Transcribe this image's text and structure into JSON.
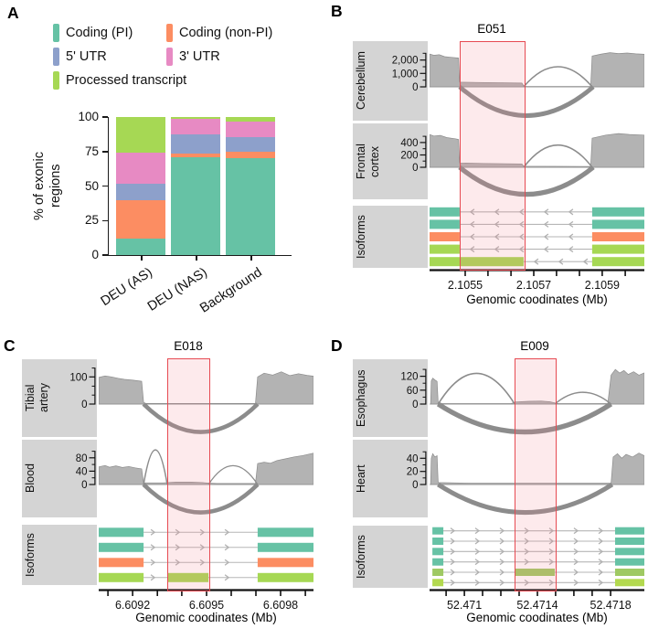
{
  "chart_data": [
    {
      "panel": "A",
      "type": "bar",
      "stacked": true,
      "categories": [
        "DEU (AS)",
        "DEU (NAS)",
        "Background"
      ],
      "series": [
        {
          "name": "Coding (PI)",
          "color": "#66c2a5",
          "values": [
            12,
            71,
            70
          ]
        },
        {
          "name": "Coding (non-PI)",
          "color": "#fc8d62",
          "values": [
            28,
            2.5,
            5
          ]
        },
        {
          "name": "5' UTR",
          "color": "#8da0cb",
          "values": [
            12,
            14,
            10.5
          ]
        },
        {
          "name": "3' UTR",
          "color": "#e78ac3",
          "values": [
            22,
            11.5,
            11.5
          ]
        },
        {
          "name": "Processed transcript",
          "color": "#a6d854",
          "values": [
            26,
            1,
            3
          ]
        }
      ],
      "ylabel": "% of exonic\nregions",
      "yticks": [
        0,
        25,
        50,
        75,
        100
      ],
      "ylim": [
        0,
        100
      ],
      "legend_position": "top"
    },
    {
      "panel": "B",
      "type": "sashimi",
      "exon_label": "E051",
      "arrow_dir": "left",
      "highlight": [
        0.14,
        0.438
      ],
      "xaxis": {
        "title": "Genomic coodinates (Mb)",
        "tick_positions": [
          0.166,
          0.272,
          0.379,
          0.485,
          0.591,
          0.698,
          0.804,
          0.911
        ],
        "labels": [
          {
            "text": "2.1055",
            "pos": 0.166
          },
          {
            "text": "2.1057",
            "pos": 0.485
          },
          {
            "text": "2.1059",
            "pos": 0.804
          }
        ]
      },
      "tracks": [
        {
          "name": "Cerebellum",
          "ymax": 3000,
          "yticks": [
            {
              "value": 2000,
              "label": "2,000"
            },
            {
              "value": 1000,
              "label": "1,000"
            },
            {
              "value": 0,
              "label": "0"
            }
          ],
          "minor_ticks": [
            2500,
            1500,
            500
          ],
          "coverage": [
            [
              0,
              2450
            ],
            [
              0.02,
              2350
            ],
            [
              0.045,
              2400
            ],
            [
              0.07,
              2250
            ],
            [
              0.1,
              2200
            ],
            [
              0.135,
              2150
            ],
            [
              0.14,
              350
            ],
            [
              0.22,
              330
            ],
            [
              0.3,
              310
            ],
            [
              0.43,
              280
            ],
            [
              0.438,
              80
            ],
            [
              0.45,
              30
            ],
            [
              0.75,
              30
            ],
            [
              0.757,
              2300
            ],
            [
              0.8,
              2450
            ],
            [
              0.84,
              2550
            ],
            [
              0.88,
              2480
            ],
            [
              0.92,
              2520
            ],
            [
              0.96,
              2460
            ],
            [
              1,
              2430
            ]
          ],
          "arcs_up": [
            [
              0.438,
              0.757,
              0.5,
              1.6
            ]
          ],
          "arcs_down": [
            [
              0.14,
              0.762,
              4.8
            ]
          ]
        },
        {
          "name": "Frontal\ncortex",
          "ymax": 620,
          "yticks": [
            {
              "value": 400,
              "label": "400"
            },
            {
              "value": 200,
              "label": "200"
            },
            {
              "value": 0,
              "label": "0"
            }
          ],
          "minor_ticks": [
            500,
            300,
            100
          ],
          "coverage": [
            [
              0,
              530
            ],
            [
              0.02,
              505
            ],
            [
              0.05,
              515
            ],
            [
              0.08,
              480
            ],
            [
              0.12,
              460
            ],
            [
              0.135,
              450
            ],
            [
              0.14,
              70
            ],
            [
              0.25,
              62
            ],
            [
              0.43,
              55
            ],
            [
              0.438,
              18
            ],
            [
              0.75,
              14
            ],
            [
              0.757,
              470
            ],
            [
              0.82,
              520
            ],
            [
              0.88,
              545
            ],
            [
              0.93,
              530
            ],
            [
              1,
              520
            ]
          ],
          "arcs_up": [
            [
              0.438,
              0.757,
              0.58,
              1.6
            ]
          ],
          "arcs_down": [
            [
              0.14,
              0.762,
              5.2
            ]
          ]
        }
      ],
      "isoforms": {
        "name": "Isoforms",
        "rows": [
          {
            "color": "#66c2a5",
            "blocks": [
              [
                0,
                0.14
              ],
              [
                0.757,
                1
              ]
            ]
          },
          {
            "color": "#66c2a5",
            "blocks": [
              [
                0,
                0.14
              ],
              [
                0.757,
                1
              ]
            ]
          },
          {
            "color": "#fc8d62",
            "blocks": [
              [
                0,
                0.14
              ],
              [
                0.757,
                1
              ]
            ]
          },
          {
            "color": "#a6d854",
            "blocks": [
              [
                0,
                0.14
              ],
              [
                0.757,
                1
              ]
            ]
          },
          {
            "color": "#a6d854",
            "blocks": [
              [
                0,
                0.438
              ],
              [
                0.757,
                1
              ]
            ]
          }
        ]
      }
    },
    {
      "panel": "C",
      "type": "sashimi",
      "exon_label": "E018",
      "arrow_dir": "right",
      "highlight": [
        0.319,
        0.511
      ],
      "xaxis": {
        "title": "Genomic coodinates (Mb)",
        "tick_positions": [
          0.043,
          0.158,
          0.273,
          0.387,
          0.502,
          0.617,
          0.732,
          0.847,
          0.962
        ],
        "labels": [
          {
            "text": "6.6092",
            "pos": 0.158
          },
          {
            "text": "6.6095",
            "pos": 0.502
          },
          {
            "text": "6.6098",
            "pos": 0.847
          }
        ]
      },
      "tracks": [
        {
          "name": "Tibial\nartery",
          "ymax": 145,
          "yticks": [
            {
              "value": 100,
              "label": "100"
            },
            {
              "value": 0,
              "label": "0"
            }
          ],
          "minor_ticks": [
            133,
            66,
            33
          ],
          "coverage": [
            [
              0,
              98
            ],
            [
              0.03,
              104
            ],
            [
              0.06,
              100
            ],
            [
              0.09,
              95
            ],
            [
              0.12,
              91
            ],
            [
              0.16,
              88
            ],
            [
              0.2,
              84
            ],
            [
              0.209,
              6
            ],
            [
              0.22,
              2
            ],
            [
              0.73,
              2
            ],
            [
              0.74,
              100
            ],
            [
              0.77,
              114
            ],
            [
              0.81,
              107
            ],
            [
              0.85,
              119
            ],
            [
              0.89,
              105
            ],
            [
              0.93,
              112
            ],
            [
              0.97,
              106
            ],
            [
              1,
              103
            ]
          ],
          "arcs_up": [],
          "arcs_down": [
            [
              0.209,
              0.74,
              4.6
            ]
          ]
        },
        {
          "name": "Blood",
          "ymax": 118,
          "yticks": [
            {
              "value": 80,
              "label": "80"
            },
            {
              "value": 40,
              "label": "40"
            },
            {
              "value": 0,
              "label": "0"
            }
          ],
          "minor_ticks": [
            100,
            60,
            20
          ],
          "coverage": [
            [
              0,
              53
            ],
            [
              0.03,
              57
            ],
            [
              0.05,
              52
            ],
            [
              0.08,
              56
            ],
            [
              0.11,
              51
            ],
            [
              0.14,
              54
            ],
            [
              0.17,
              50
            ],
            [
              0.2,
              47
            ],
            [
              0.209,
              5
            ],
            [
              0.3,
              5
            ],
            [
              0.36,
              7
            ],
            [
              0.43,
              7
            ],
            [
              0.48,
              6
            ],
            [
              0.511,
              4
            ],
            [
              0.55,
              3
            ],
            [
              0.73,
              3
            ],
            [
              0.74,
              63
            ],
            [
              0.77,
              67
            ],
            [
              0.8,
              64
            ],
            [
              0.83,
              72
            ],
            [
              0.87,
              77
            ],
            [
              0.91,
              83
            ],
            [
              0.95,
              87
            ],
            [
              1,
              94
            ]
          ],
          "arcs_up": [
            [
              0.209,
              0.319,
              0.88,
              1.5
            ],
            [
              0.511,
              0.74,
              0.48,
              1.3
            ]
          ],
          "arcs_down": [
            [
              0.209,
              0.74,
              4.6
            ]
          ]
        }
      ],
      "isoforms": {
        "name": "Isoforms",
        "rows": [
          {
            "color": "#66c2a5",
            "blocks": [
              [
                0,
                0.209
              ],
              [
                0.74,
                1
              ]
            ]
          },
          {
            "color": "#66c2a5",
            "blocks": [
              [
                0,
                0.209
              ],
              [
                0.74,
                1
              ]
            ]
          },
          {
            "color": "#fc8d62",
            "blocks": [
              [
                0,
                0.209
              ],
              [
                0.74,
                1
              ]
            ]
          },
          {
            "color": "#a6d854",
            "blocks": [
              [
                0,
                0.209
              ],
              [
                0.319,
                0.511
              ],
              [
                0.74,
                1
              ]
            ]
          }
        ]
      }
    },
    {
      "panel": "D",
      "type": "sashimi",
      "exon_label": "E009",
      "arrow_dir": "right",
      "highlight": [
        0.396,
        0.583
      ],
      "xaxis": {
        "title": "Genomic coodinates (Mb)",
        "tick_positions": [
          0.077,
          0.162,
          0.247,
          0.332,
          0.417,
          0.502,
          0.587,
          0.672,
          0.757,
          0.843
        ],
        "labels": [
          {
            "text": "52.471",
            "pos": 0.162
          },
          {
            "text": "52.4714",
            "pos": 0.502
          },
          {
            "text": "52.4718",
            "pos": 0.843
          }
        ]
      },
      "tracks": [
        {
          "name": "Esophagus",
          "ymax": 170,
          "yticks": [
            {
              "value": 120,
              "label": "120"
            },
            {
              "value": 60,
              "label": "60"
            },
            {
              "value": 0,
              "label": "0"
            }
          ],
          "minor_ticks": [
            150,
            90,
            30
          ],
          "coverage": [
            [
              0.005,
              5
            ],
            [
              0.008,
              100
            ],
            [
              0.015,
              112
            ],
            [
              0.025,
              104
            ],
            [
              0.035,
              98
            ],
            [
              0.04,
              6
            ],
            [
              0.06,
              2
            ],
            [
              0.38,
              2
            ],
            [
              0.4,
              9
            ],
            [
              0.46,
              12
            ],
            [
              0.52,
              13
            ],
            [
              0.56,
              10
            ],
            [
              0.583,
              5
            ],
            [
              0.6,
              2
            ],
            [
              0.83,
              2
            ],
            [
              0.845,
              125
            ],
            [
              0.865,
              150
            ],
            [
              0.885,
              134
            ],
            [
              0.905,
              145
            ],
            [
              0.925,
              128
            ],
            [
              0.95,
              140
            ],
            [
              0.975,
              125
            ],
            [
              1,
              135
            ]
          ],
          "arcs_up": [
            [
              0.04,
              0.396,
              0.78,
              1.6
            ],
            [
              0.583,
              0.845,
              0.3,
              1.4
            ]
          ],
          "arcs_down": [
            [
              0.04,
              0.845,
              5.4
            ]
          ]
        },
        {
          "name": "Heart",
          "ymax": 60,
          "yticks": [
            {
              "value": 40,
              "label": "40"
            },
            {
              "value": 20,
              "label": "20"
            },
            {
              "value": 0,
              "label": "0"
            }
          ],
          "minor_ticks": [
            50,
            30,
            10
          ],
          "coverage": [
            [
              0.005,
              3
            ],
            [
              0.008,
              40
            ],
            [
              0.015,
              47
            ],
            [
              0.025,
              42
            ],
            [
              0.035,
              44
            ],
            [
              0.04,
              3
            ],
            [
              0.2,
              2
            ],
            [
              0.5,
              2
            ],
            [
              0.8,
              2
            ],
            [
              0.845,
              2
            ],
            [
              0.855,
              42
            ],
            [
              0.875,
              47
            ],
            [
              0.895,
              40
            ],
            [
              0.915,
              46
            ],
            [
              0.945,
              42
            ],
            [
              0.975,
              48
            ],
            [
              1,
              44
            ]
          ],
          "arcs_up": [],
          "arcs_down": [
            [
              0.04,
              0.85,
              5.0
            ]
          ]
        }
      ],
      "isoforms": {
        "name": "Isoforms",
        "rows": [
          {
            "color": "#66c2a5",
            "blocks": [
              [
                0.013,
                0.064
              ],
              [
                0.864,
                1
              ]
            ]
          },
          {
            "color": "#66c2a5",
            "blocks": [
              [
                0.013,
                0.064
              ],
              [
                0.864,
                1
              ]
            ]
          },
          {
            "color": "#66c2a5",
            "blocks": [
              [
                0.013,
                0.064
              ],
              [
                0.864,
                1
              ]
            ]
          },
          {
            "color": "#66c2a5",
            "blocks": [
              [
                0.013,
                0.064
              ],
              [
                0.864,
                1
              ]
            ]
          },
          {
            "color": "#9fc963",
            "blocks": [
              [
                0.013,
                0.064
              ],
              [
                0.396,
                0.583
              ],
              [
                0.864,
                1
              ]
            ]
          },
          {
            "color": "#b3d94f",
            "blocks": [
              [
                0.013,
                0.064
              ],
              [
                0.864,
                1
              ]
            ]
          }
        ]
      }
    }
  ],
  "colors": {
    "coding_pi": "#66c2a5",
    "coding_non_pi": "#fc8d62",
    "utr5": "#8da0cb",
    "utr3": "#e78ac3",
    "processed_transcript": "#a6d854",
    "coverage_fill": "#b3b3b3",
    "strip_bg": "#d4d4d4",
    "highlight_border": "#e64a52"
  }
}
